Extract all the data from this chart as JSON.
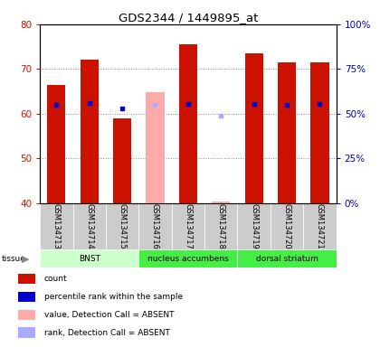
{
  "title": "GDS2344 / 1449895_at",
  "samples": [
    "GSM134713",
    "GSM134714",
    "GSM134715",
    "GSM134716",
    "GSM134717",
    "GSM134718",
    "GSM134719",
    "GSM134720",
    "GSM134721"
  ],
  "values": [
    66.5,
    72.0,
    59.0,
    64.8,
    75.5,
    40.4,
    73.5,
    71.5,
    71.5
  ],
  "percentile_ranks": [
    55.0,
    56.0,
    53.0,
    55.0,
    55.5,
    49.0,
    55.5,
    55.0,
    55.5
  ],
  "absent": [
    false,
    false,
    false,
    true,
    false,
    true,
    false,
    false,
    false
  ],
  "ylim_left": [
    40,
    80
  ],
  "ylim_right": [
    0,
    100
  ],
  "yticks_left": [
    40,
    50,
    60,
    70,
    80
  ],
  "yticks_right": [
    0,
    25,
    50,
    75,
    100
  ],
  "ytick_labels_right": [
    "0%",
    "25%",
    "50%",
    "75%",
    "100%"
  ],
  "tissue_groups": [
    {
      "label": "BNST",
      "start": 0,
      "end": 3,
      "color": "#ccffcc"
    },
    {
      "label": "nucleus accumbens",
      "start": 3,
      "end": 6,
      "color": "#44ee44"
    },
    {
      "label": "dorsal striatum",
      "start": 6,
      "end": 9,
      "color": "#44ee44"
    }
  ],
  "bar_color_present": "#cc1100",
  "bar_color_absent": "#ffaaaa",
  "rank_color_present": "#0000cc",
  "rank_color_absent": "#aaaaff",
  "bar_width": 0.55,
  "bg_color": "#ffffff",
  "plot_bg": "#ffffff",
  "ylabel_left_color": "#cc1100",
  "ylabel_right_color": "#0000bb",
  "sample_label_bg": "#cccccc",
  "legend_items": [
    {
      "color": "#cc1100",
      "label": "count"
    },
    {
      "color": "#0000cc",
      "label": "percentile rank within the sample"
    },
    {
      "color": "#ffaaaa",
      "label": "value, Detection Call = ABSENT"
    },
    {
      "color": "#aaaaff",
      "label": "rank, Detection Call = ABSENT"
    }
  ]
}
